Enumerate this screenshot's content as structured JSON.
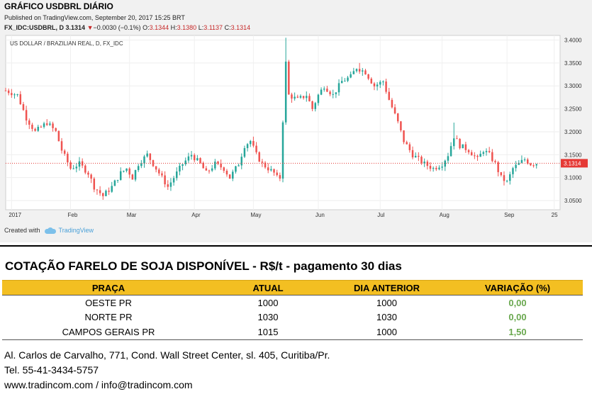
{
  "header": {
    "title": "GRÁFICO USDBRL DIÁRIO",
    "published": "Published on TradingView.com, September 20, 2017 15:25 BRT",
    "symbol_line": "FX_IDC:USDBRL, D",
    "last": "3.1314",
    "change_arrow": "▼",
    "change": "−0.0030 (−0.1%)",
    "open_label": "O:",
    "open": "3.1344",
    "high_label": "H:",
    "high": "3.1380",
    "low_label": "L:",
    "low": "3.1137",
    "close_label": "C:",
    "close": "3.1314"
  },
  "footer": {
    "created_with": "Created with",
    "brand": "TradingView"
  },
  "colors": {
    "up": "#26a69a",
    "down": "#ef5350",
    "table_header": "#f3bf22",
    "variation": "#6aa84f",
    "last_price_label": "#e53935"
  },
  "chart_data": {
    "type": "candlestick",
    "title": "US DOLLAR / BRAZILIAN REAL, D, FX_IDC",
    "ylim": [
      3.03,
      3.41
    ],
    "y_ticks": [
      "3.0500",
      "3.1000",
      "3.1500",
      "3.2000",
      "3.2500",
      "3.3000",
      "3.3500",
      "3.4000"
    ],
    "x_ticks": [
      {
        "label": "2017",
        "day": 2
      },
      {
        "label": "Feb",
        "day": 22
      },
      {
        "label": "Mar",
        "day": 42
      },
      {
        "label": "Apr",
        "day": 64
      },
      {
        "label": "May",
        "day": 84
      },
      {
        "label": "Jun",
        "day": 106
      },
      {
        "label": "Jul",
        "day": 127
      },
      {
        "label": "Aug",
        "day": 148
      },
      {
        "label": "Sep",
        "day": 170
      },
      {
        "label": "25",
        "day": 186
      }
    ],
    "last_price": "3.1314",
    "anchors": [
      [
        0,
        3.29
      ],
      [
        4,
        3.28
      ],
      [
        7,
        3.23
      ],
      [
        10,
        3.2
      ],
      [
        14,
        3.22
      ],
      [
        17,
        3.2
      ],
      [
        19,
        3.16
      ],
      [
        22,
        3.12
      ],
      [
        25,
        3.13
      ],
      [
        28,
        3.11
      ],
      [
        30,
        3.08
      ],
      [
        33,
        3.06
      ],
      [
        36,
        3.08
      ],
      [
        39,
        3.11
      ],
      [
        41,
        3.12
      ],
      [
        43,
        3.1
      ],
      [
        45,
        3.13
      ],
      [
        48,
        3.15
      ],
      [
        51,
        3.12
      ],
      [
        53,
        3.1
      ],
      [
        55,
        3.08
      ],
      [
        57,
        3.1
      ],
      [
        60,
        3.13
      ],
      [
        63,
        3.15
      ],
      [
        66,
        3.13
      ],
      [
        68,
        3.11
      ],
      [
        71,
        3.13
      ],
      [
        74,
        3.12
      ],
      [
        76,
        3.1
      ],
      [
        79,
        3.13
      ],
      [
        81,
        3.17
      ],
      [
        83,
        3.18
      ],
      [
        85,
        3.15
      ],
      [
        87,
        3.13
      ],
      [
        89,
        3.12
      ],
      [
        91,
        3.11
      ],
      [
        92,
        3.1
      ],
      [
        93,
        3.1
      ],
      [
        95,
        3.35
      ],
      [
        96,
        3.28
      ],
      [
        99,
        3.27
      ],
      [
        102,
        3.28
      ],
      [
        104,
        3.25
      ],
      [
        106,
        3.28
      ],
      [
        108,
        3.3
      ],
      [
        111,
        3.28
      ],
      [
        114,
        3.31
      ],
      [
        117,
        3.32
      ],
      [
        119,
        3.34
      ],
      [
        122,
        3.33
      ],
      [
        125,
        3.3
      ],
      [
        128,
        3.31
      ],
      [
        130,
        3.27
      ],
      [
        133,
        3.22
      ],
      [
        135,
        3.18
      ],
      [
        138,
        3.15
      ],
      [
        140,
        3.14
      ],
      [
        142,
        3.13
      ],
      [
        145,
        3.12
      ],
      [
        148,
        3.13
      ],
      [
        150,
        3.15
      ],
      [
        152,
        3.19
      ],
      [
        154,
        3.17
      ],
      [
        157,
        3.16
      ],
      [
        160,
        3.14
      ],
      [
        162,
        3.16
      ],
      [
        164,
        3.15
      ],
      [
        166,
        3.13
      ],
      [
        168,
        3.1
      ],
      [
        170,
        3.09
      ],
      [
        172,
        3.12
      ],
      [
        174,
        3.13
      ],
      [
        176,
        3.14
      ],
      [
        178,
        3.13
      ],
      [
        180,
        3.1314
      ]
    ],
    "spikes": [
      {
        "day": 95,
        "high": 3.405
      },
      {
        "day": 152,
        "high": 3.22
      },
      {
        "day": 120,
        "high": 3.35
      }
    ]
  },
  "table": {
    "title": "COTAÇÃO FARELO DE SOJA DISPONÍVEL - R$/t - pagamento 30 dias",
    "headers": [
      "PRAÇA",
      "ATUAL",
      "DIA ANTERIOR",
      "VARIAÇÃO (%)"
    ],
    "rows": [
      {
        "praca": "OESTE PR",
        "atual": "1000",
        "anterior": "1000",
        "variacao": "0,00"
      },
      {
        "praca": "NORTE PR",
        "atual": "1030",
        "anterior": "1030",
        "variacao": "0,00"
      },
      {
        "praca": "CAMPOS GERAIS PR",
        "atual": "1015",
        "anterior": "1000",
        "variacao": "1,50"
      }
    ]
  },
  "contact": {
    "address": "Al. Carlos de Carvalho, 771, Cond. Wall Street Center, sl. 405, Curitiba/Pr.",
    "phone": "Tel. 55-41-3434-5757",
    "web": "www.tradincom.com / info@tradincom.com"
  }
}
